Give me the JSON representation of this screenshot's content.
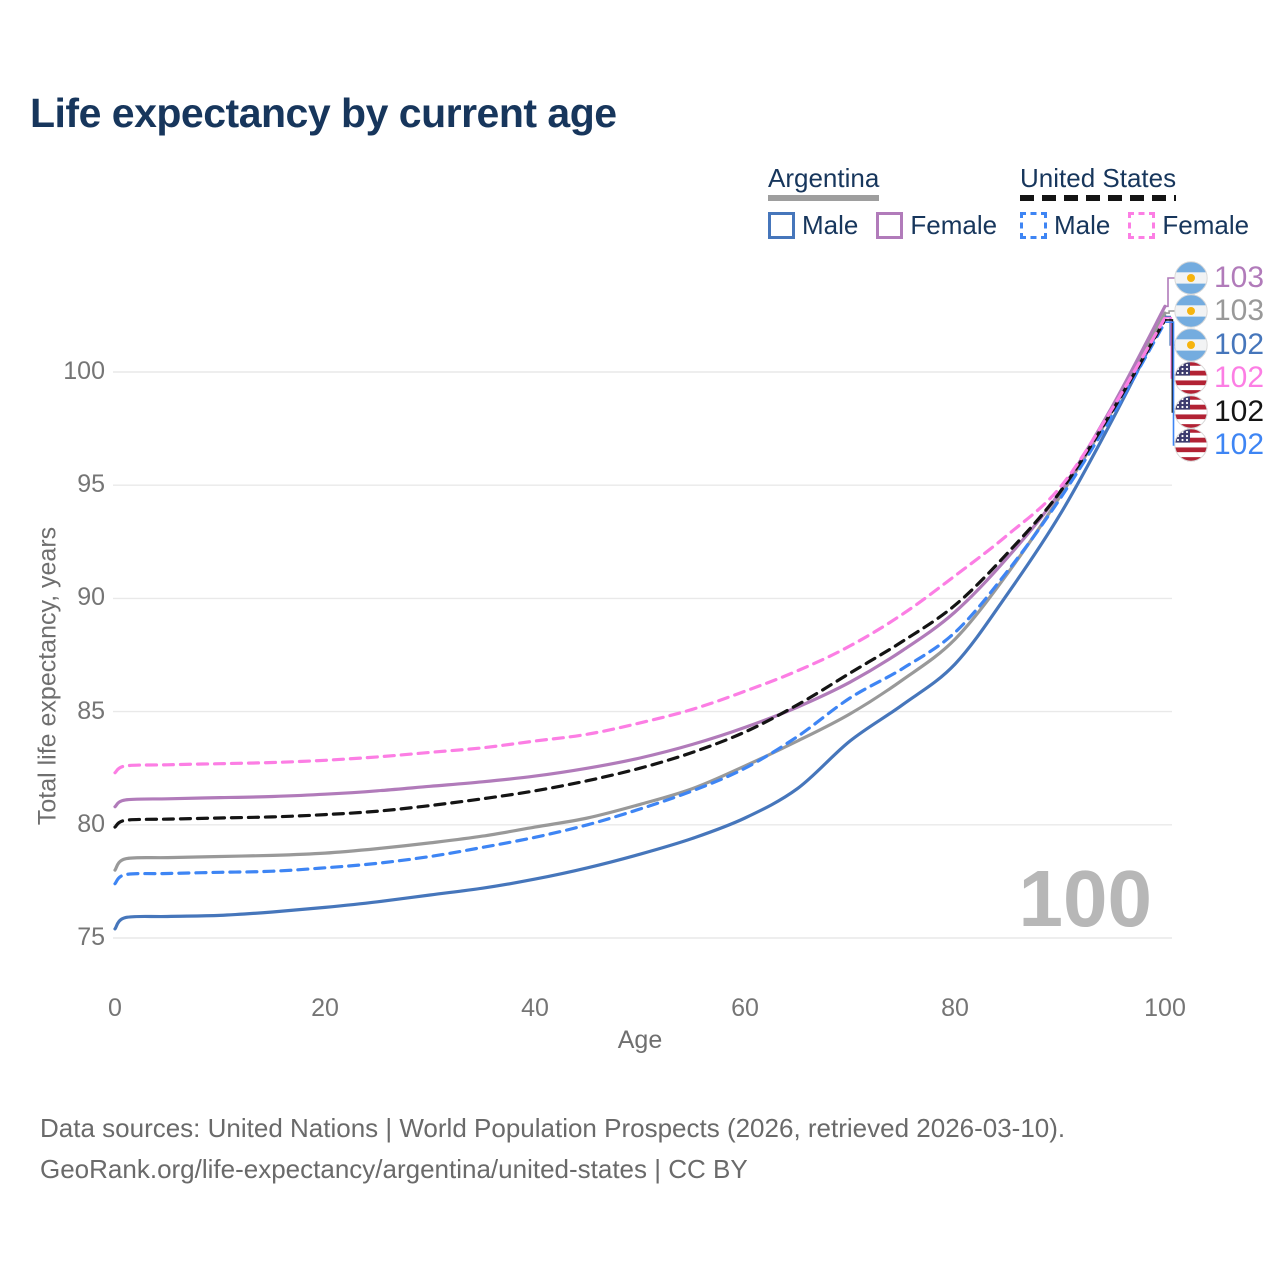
{
  "title": "Life expectancy by current age",
  "legend": {
    "groups": [
      {
        "label": "Argentina",
        "line_style": "solid",
        "line_color": "#9e9e9e",
        "items": [
          {
            "label": "Male",
            "color": "#4676bb",
            "dashed": false
          },
          {
            "label": "Female",
            "color": "#b17bba",
            "dashed": false
          }
        ]
      },
      {
        "label": "United States",
        "line_style": "dashed",
        "line_color": "#141414",
        "items": [
          {
            "label": "Male",
            "color": "#3e85f4",
            "dashed": true
          },
          {
            "label": "Female",
            "color": "#fc7ee4",
            "dashed": true
          }
        ]
      }
    ]
  },
  "axes": {
    "x_label": "Age",
    "y_label": "Total life expectancy, years",
    "x_ticks": [
      0,
      20,
      40,
      60,
      80,
      100
    ],
    "y_ticks": [
      75,
      80,
      85,
      90,
      95,
      100
    ]
  },
  "watermark": "100",
  "chart_data": {
    "type": "line",
    "title": "Life expectancy by current age",
    "xlabel": "Age",
    "ylabel": "Total life expectancy, years",
    "xlim": [
      0,
      100
    ],
    "ylim": [
      75,
      100
    ],
    "grid": "horizontal-only",
    "legend_position": "top-right",
    "x": [
      0,
      1,
      5,
      10,
      15,
      20,
      25,
      30,
      35,
      40,
      45,
      50,
      55,
      60,
      65,
      70,
      75,
      80,
      85,
      90,
      95,
      100
    ],
    "series": [
      {
        "name": "Argentina Female",
        "country": "Argentina",
        "sex": "Female",
        "color": "#b17bba",
        "dashed": false,
        "end_label": "103",
        "flag": "argentina",
        "values": [
          80.8,
          81.1,
          81.15,
          81.2,
          81.25,
          81.35,
          81.5,
          81.7,
          81.9,
          82.15,
          82.5,
          82.95,
          83.55,
          84.3,
          85.2,
          86.3,
          87.7,
          89.4,
          91.8,
          94.7,
          98.5,
          102.9
        ]
      },
      {
        "name": "Argentina Both sexes",
        "country": "Argentina",
        "sex": "Both",
        "color": "#999999",
        "dashed": false,
        "end_label": "103",
        "flag": "argentina",
        "values": [
          78.0,
          78.5,
          78.55,
          78.6,
          78.65,
          78.75,
          78.95,
          79.2,
          79.5,
          79.9,
          80.3,
          80.9,
          81.6,
          82.6,
          83.7,
          84.9,
          86.4,
          88.2,
          91.1,
          94.5,
          98.3,
          102.6
        ]
      },
      {
        "name": "Argentina Male",
        "country": "Argentina",
        "sex": "Male",
        "color": "#4676bb",
        "dashed": false,
        "end_label": "102",
        "flag": "argentina",
        "values": [
          75.4,
          75.9,
          75.95,
          76.0,
          76.15,
          76.35,
          76.6,
          76.9,
          77.2,
          77.6,
          78.1,
          78.7,
          79.4,
          80.3,
          81.6,
          83.7,
          85.3,
          87.1,
          90.2,
          93.7,
          97.9,
          102.45
        ]
      },
      {
        "name": "United States Female",
        "country": "United States",
        "sex": "Female",
        "color": "#fc7ee4",
        "dashed": true,
        "end_label": "102",
        "flag": "us",
        "values": [
          82.3,
          82.6,
          82.65,
          82.7,
          82.75,
          82.85,
          83.0,
          83.2,
          83.4,
          83.7,
          84.0,
          84.5,
          85.1,
          85.9,
          86.8,
          87.9,
          89.3,
          91.0,
          92.8,
          94.9,
          98.4,
          102.4
        ]
      },
      {
        "name": "United States Both sexes",
        "country": "United States",
        "sex": "Both",
        "color": "#141414",
        "dashed": true,
        "end_label": "102",
        "flag": "us",
        "values": [
          79.9,
          80.2,
          80.25,
          80.3,
          80.35,
          80.45,
          80.6,
          80.85,
          81.15,
          81.5,
          81.95,
          82.5,
          83.2,
          84.1,
          85.3,
          86.7,
          88.1,
          89.7,
          92.0,
          94.7,
          98.3,
          102.3
        ]
      },
      {
        "name": "United States Male",
        "country": "United States",
        "sex": "Male",
        "color": "#3e85f4",
        "dashed": true,
        "end_label": "102",
        "flag": "us",
        "values": [
          77.4,
          77.8,
          77.85,
          77.9,
          77.95,
          78.1,
          78.3,
          78.6,
          79.0,
          79.45,
          80.0,
          80.7,
          81.5,
          82.5,
          83.9,
          85.6,
          86.9,
          88.5,
          91.2,
          94.4,
          98.1,
          102.2
        ]
      }
    ]
  },
  "footer": {
    "line1": "Data sources: United Nations | World Population Prospects (2026, retrieved 2026-03-10).",
    "line2": "GeoRank.org/life-expectancy/argentina/united-states | CC BY"
  },
  "colors": {
    "title_text": "#17365c",
    "axis_text": "#6f6f6f",
    "tick_text": "#757575",
    "gridline": "#e9e9e9",
    "watermark": "#b7b7b7",
    "footer_text": "#6a6a6a",
    "argentina_flag_band": "#74acdf",
    "argentina_flag_sun": "#f6b40e",
    "us_flag_red": "#b22234",
    "us_flag_blue": "#3c3b6e"
  }
}
